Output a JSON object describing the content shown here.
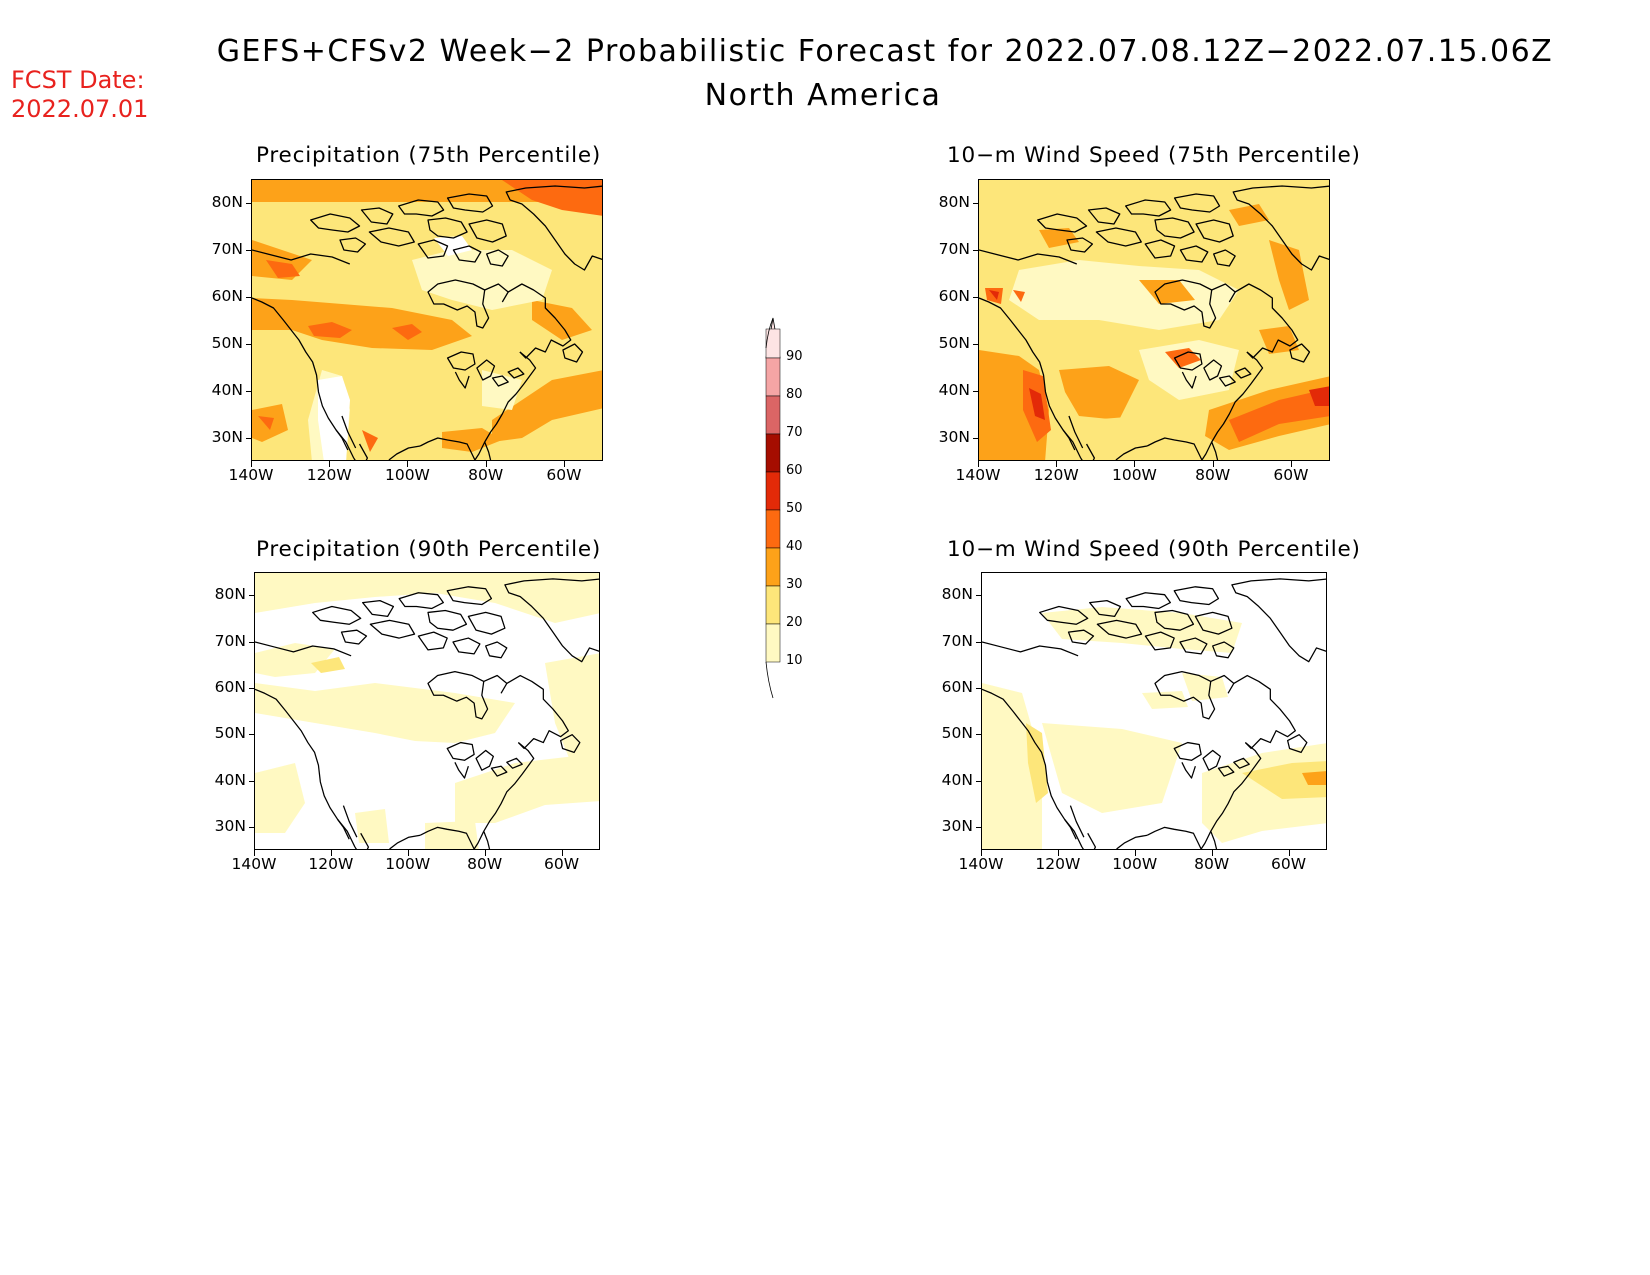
{
  "header": {
    "fcst_label": "FCST Date:",
    "fcst_date": "2022.07.01",
    "title_line1": "GEFS+CFSv2 Week−2 Probabilistic Forecast for 2022.07.08.12Z−2022.07.15.06Z",
    "title_line2": "North America"
  },
  "panels": [
    {
      "id": "precip-75",
      "title": "Precipitation (75th Percentile)"
    },
    {
      "id": "wind-75",
      "title": "10−m Wind Speed (75th Percentile)"
    },
    {
      "id": "precip-90",
      "title": "Precipitation (90th Percentile)"
    },
    {
      "id": "wind-90",
      "title": "10−m Wind Speed (90th Percentile)"
    }
  ],
  "axes": {
    "lat_ticks": [
      "80N",
      "70N",
      "60N",
      "50N",
      "40N",
      "30N"
    ],
    "lon_ticks": [
      "140W",
      "120W",
      "100W",
      "80W",
      "60W"
    ]
  },
  "colorbar": {
    "levels": [
      "10",
      "20",
      "30",
      "40",
      "50",
      "60",
      "70",
      "80",
      "90"
    ],
    "colors": {
      "c10": "#fff9c2",
      "c20": "#fde67a",
      "c30": "#fda219",
      "c40": "#fd6a10",
      "c50": "#e32a08",
      "c60": "#a50d00",
      "c70": "#db6565",
      "c80": "#f5a5a5",
      "c90": "#fde4e4"
    }
  }
}
